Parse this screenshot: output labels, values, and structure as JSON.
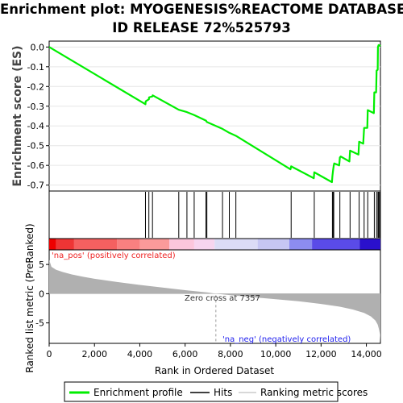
{
  "title_line1": "Enrichment plot: MYOGENESIS%REACTOME DATABASE",
  "title_line2": "ID RELEASE 72%525793",
  "colors": {
    "profile": "#00ee00",
    "hits": "#000000",
    "metric": "#b0b0b0",
    "pos_text": "#ee2222",
    "neg_text": "#2222ee"
  },
  "chart_data": {
    "type": "line",
    "es": {
      "ylabel": "Enrichment score (ES)",
      "ylim": [
        -0.73,
        0.03
      ],
      "yticks": [
        0.0,
        -0.1,
        -0.2,
        -0.3,
        -0.4,
        -0.5,
        -0.6,
        -0.7
      ],
      "ytick_labels": [
        "0.0",
        "-0.1",
        "-0.2",
        "-0.3",
        "-0.4",
        "-0.5",
        "-0.6",
        "-0.7"
      ],
      "points": [
        [
          0,
          0.0
        ],
        [
          4250,
          -0.29
        ],
        [
          4260,
          -0.275
        ],
        [
          4400,
          -0.265
        ],
        [
          4410,
          -0.255
        ],
        [
          4560,
          -0.25
        ],
        [
          4570,
          -0.245
        ],
        [
          5720,
          -0.318
        ],
        [
          6080,
          -0.33
        ],
        [
          6400,
          -0.345
        ],
        [
          6920,
          -0.373
        ],
        [
          6960,
          -0.38
        ],
        [
          7650,
          -0.415
        ],
        [
          7950,
          -0.435
        ],
        [
          8240,
          -0.45
        ],
        [
          10650,
          -0.62
        ],
        [
          10680,
          -0.605
        ],
        [
          11680,
          -0.665
        ],
        [
          11700,
          -0.635
        ],
        [
          12480,
          -0.685
        ],
        [
          12500,
          -0.655
        ],
        [
          12530,
          -0.625
        ],
        [
          12560,
          -0.6
        ],
        [
          12580,
          -0.59
        ],
        [
          12800,
          -0.6
        ],
        [
          12830,
          -0.56
        ],
        [
          12870,
          -0.555
        ],
        [
          13250,
          -0.58
        ],
        [
          13280,
          -0.525
        ],
        [
          13650,
          -0.545
        ],
        [
          13680,
          -0.48
        ],
        [
          13860,
          -0.49
        ],
        [
          13900,
          -0.41
        ],
        [
          14040,
          -0.41
        ],
        [
          14060,
          -0.32
        ],
        [
          14330,
          -0.335
        ],
        [
          14350,
          -0.23
        ],
        [
          14430,
          -0.23
        ],
        [
          14450,
          -0.12
        ],
        [
          14500,
          -0.115
        ],
        [
          14510,
          0.0
        ],
        [
          14540,
          0.01
        ],
        [
          14620,
          0.005
        ]
      ]
    },
    "hits": [
      4250,
      4400,
      4560,
      5720,
      6080,
      6400,
      6920,
      6960,
      7650,
      7950,
      8240,
      10680,
      11700,
      12500,
      12530,
      12560,
      12830,
      13280,
      13680,
      13900,
      14060,
      14350,
      14450,
      14510,
      14540,
      14580
    ],
    "metric": {
      "ylabel": "Ranked list metric (PreRanked)",
      "ylim": [
        -8.5,
        7.5
      ],
      "yticks": [
        5,
        0,
        -5
      ],
      "ytick_labels": [
        "5",
        "0",
        "-5"
      ],
      "curve": [
        [
          0,
          5.8
        ],
        [
          100,
          4.6
        ],
        [
          300,
          4.1
        ],
        [
          600,
          3.7
        ],
        [
          1000,
          3.3
        ],
        [
          1500,
          2.9
        ],
        [
          2000,
          2.55
        ],
        [
          3000,
          2.0
        ],
        [
          4000,
          1.5
        ],
        [
          5000,
          1.05
        ],
        [
          6000,
          0.6
        ],
        [
          7000,
          0.2
        ],
        [
          7357,
          0.0
        ],
        [
          8000,
          -0.25
        ],
        [
          9000,
          -0.6
        ],
        [
          10000,
          -0.95
        ],
        [
          11000,
          -1.3
        ],
        [
          12000,
          -1.75
        ],
        [
          12800,
          -2.2
        ],
        [
          13400,
          -2.7
        ],
        [
          13900,
          -3.3
        ],
        [
          14200,
          -3.9
        ],
        [
          14400,
          -4.6
        ],
        [
          14500,
          -5.3
        ],
        [
          14550,
          -6.0
        ],
        [
          14600,
          -7.0
        ],
        [
          14620,
          -8.3
        ]
      ],
      "zero_cross": 7357,
      "zero_cross_label": "Zero cross at 7357",
      "pos_label": "'na_pos' (positively correlated)",
      "neg_label": "'na_neg' (negatively correlated)"
    },
    "xaxis": {
      "xlabel": "Rank in Ordered Dataset",
      "xlim": [
        0,
        14620
      ],
      "xticks": [
        0,
        2000,
        4000,
        6000,
        8000,
        10000,
        12000,
        14000
      ],
      "xtick_labels": [
        "0",
        "2,000",
        "4,000",
        "6,000",
        "8,000",
        "10,000",
        "12,000",
        "14,000"
      ]
    },
    "colorbar": [
      {
        "to": 300,
        "color": "#ee0000"
      },
      {
        "to": 1100,
        "color": "#ee3535"
      },
      {
        "to": 3000,
        "color": "#f56060"
      },
      {
        "to": 4000,
        "color": "#f98080"
      },
      {
        "to": 5300,
        "color": "#fb9a9a"
      },
      {
        "to": 6400,
        "color": "#fcc6dc"
      },
      {
        "to": 7300,
        "color": "#f7d5ef"
      },
      {
        "to": 9200,
        "color": "#dcdcf6"
      },
      {
        "to": 10600,
        "color": "#c6c6f3"
      },
      {
        "to": 11600,
        "color": "#8c8cf0"
      },
      {
        "to": 13700,
        "color": "#5a4be8"
      },
      {
        "to": 14620,
        "color": "#2a10cc"
      }
    ],
    "legend": [
      {
        "label": "Enrichment profile",
        "color": "#00ee00"
      },
      {
        "label": "Hits",
        "color": "#000000"
      },
      {
        "label": "Ranking metric scores",
        "color": "#cccccc"
      }
    ]
  }
}
